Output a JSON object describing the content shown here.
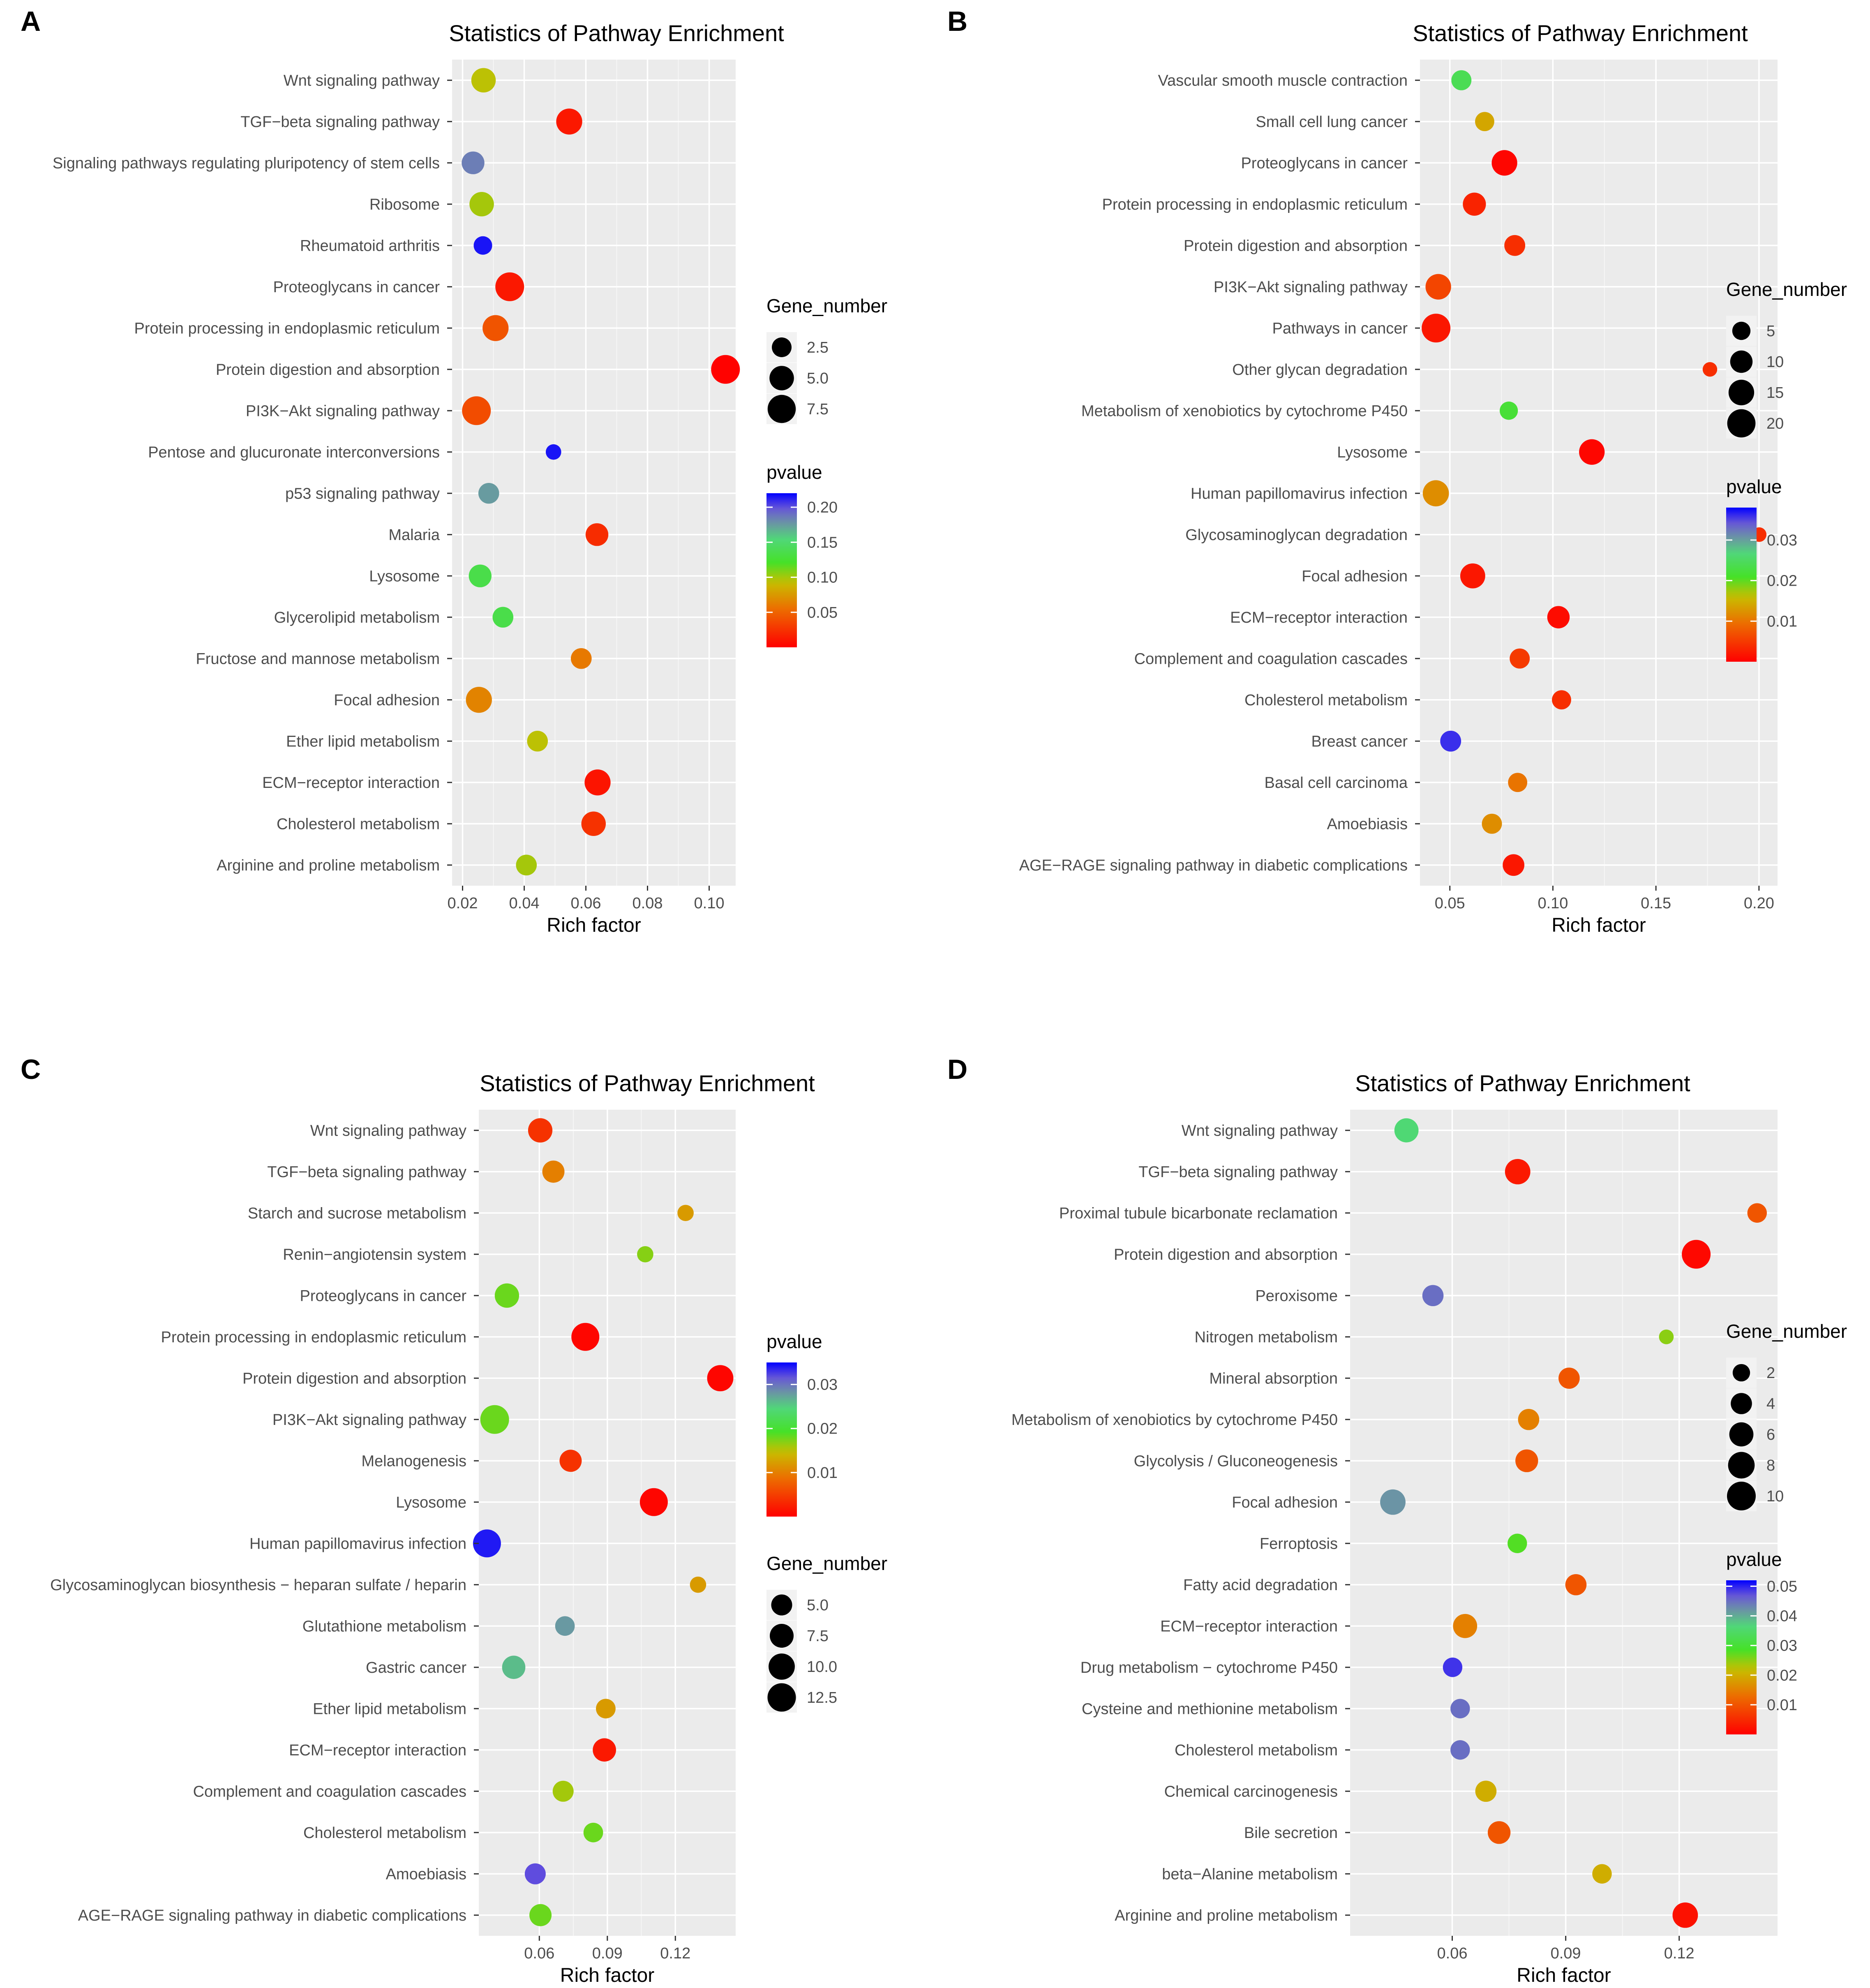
{
  "chart_data": [
    {
      "panel": "A",
      "type": "scatter",
      "title": "Statistics of Pathway Enrichment",
      "xlabel": "Rich factor",
      "ylabel": "",
      "xlim": [
        0.0166,
        0.1086
      ],
      "xticks": [
        0.02,
        0.04,
        0.06,
        0.08,
        0.1
      ],
      "xtick_labels": [
        "0.02",
        "0.04",
        "0.06",
        "0.08",
        "0.10"
      ],
      "pvalue_range": [
        0.0,
        0.22
      ],
      "size_legend_title": "Gene_number",
      "size_legend": [
        {
          "value": 2.5,
          "label": "2.5"
        },
        {
          "value": 5.0,
          "label": "5.0"
        },
        {
          "value": 7.5,
          "label": "7.5"
        }
      ],
      "color_legend_title": "pvalue",
      "color_ticks": [
        0.2,
        0.15,
        0.1,
        0.05
      ],
      "color_tick_labels": [
        "0.20",
        "0.15",
        "0.10",
        "0.05"
      ],
      "points": [
        {
          "pathway": "Wnt signaling pathway",
          "rich_factor": 0.0268,
          "pvalue": 0.095,
          "gene_number": 5
        },
        {
          "pathway": "TGF-beta signaling pathway",
          "rich_factor": 0.0546,
          "pvalue": 0.012,
          "gene_number": 6
        },
        {
          "pathway": "Signaling pathways regulating pluripotency of stem cells",
          "rich_factor": 0.0234,
          "pvalue": 0.185,
          "gene_number": 4
        },
        {
          "pathway": "Ribosome",
          "rich_factor": 0.0262,
          "pvalue": 0.1,
          "gene_number": 5
        },
        {
          "pathway": "Rheumatoid arthritis",
          "rich_factor": 0.0266,
          "pvalue": 0.215,
          "gene_number": 2
        },
        {
          "pathway": "Proteoglycans in cancer",
          "rich_factor": 0.0353,
          "pvalue": 0.012,
          "gene_number": 8
        },
        {
          "pathway": "Protein processing in endoplasmic reticulum",
          "rich_factor": 0.0307,
          "pvalue": 0.042,
          "gene_number": 6
        },
        {
          "pathway": "Protein digestion and absorption",
          "rich_factor": 0.1053,
          "pvalue": 0.001,
          "gene_number": 8
        },
        {
          "pathway": "PI3K-Akt signaling pathway",
          "rich_factor": 0.0245,
          "pvalue": 0.038,
          "gene_number": 8
        },
        {
          "pathway": "Pentose and glucuronate interconversions",
          "rich_factor": 0.0495,
          "pvalue": 0.215,
          "gene_number": 1
        },
        {
          "pathway": "p53 signaling pathway",
          "rich_factor": 0.0285,
          "pvalue": 0.175,
          "gene_number": 3
        },
        {
          "pathway": "Malaria",
          "rich_factor": 0.0636,
          "pvalue": 0.022,
          "gene_number": 4
        },
        {
          "pathway": "Lysosome",
          "rich_factor": 0.0257,
          "pvalue": 0.135,
          "gene_number": 4
        },
        {
          "pathway": "Glycerolipid metabolism",
          "rich_factor": 0.0331,
          "pvalue": 0.135,
          "gene_number": 3
        },
        {
          "pathway": "Fructose and mannose metabolism",
          "rich_factor": 0.0585,
          "pvalue": 0.06,
          "gene_number": 3
        },
        {
          "pathway": "Focal adhesion",
          "rich_factor": 0.0253,
          "pvalue": 0.065,
          "gene_number": 6
        },
        {
          "pathway": "Ether lipid metabolism",
          "rich_factor": 0.0443,
          "pvalue": 0.095,
          "gene_number": 3
        },
        {
          "pathway": "ECM-receptor interaction",
          "rich_factor": 0.0638,
          "pvalue": 0.01,
          "gene_number": 6
        },
        {
          "pathway": "Cholesterol metabolism",
          "rich_factor": 0.0625,
          "pvalue": 0.025,
          "gene_number": 5
        },
        {
          "pathway": "Arginine and proline metabolism",
          "rich_factor": 0.0407,
          "pvalue": 0.1,
          "gene_number": 3
        }
      ]
    },
    {
      "panel": "B",
      "type": "scatter",
      "title": "Statistics of Pathway Enrichment",
      "xlabel": "Rich factor",
      "ylabel": "",
      "xlim": [
        0.0355,
        0.209
      ],
      "xticks": [
        0.05,
        0.1,
        0.15,
        0.2
      ],
      "xtick_labels": [
        "0.05",
        "0.10",
        "0.15",
        "0.20"
      ],
      "pvalue_range": [
        0.0,
        0.038
      ],
      "size_legend_title": "Gene_number",
      "size_legend": [
        {
          "value": 5,
          "label": "5"
        },
        {
          "value": 10,
          "label": "10"
        },
        {
          "value": 15,
          "label": "15"
        },
        {
          "value": 20,
          "label": "20"
        }
      ],
      "color_legend_title": "pvalue",
      "color_ticks": [
        0.03,
        0.02,
        0.01
      ],
      "color_tick_labels": [
        "0.03",
        "0.02",
        "0.01"
      ],
      "points": [
        {
          "pathway": "Vascular smooth muscle contraction",
          "rich_factor": 0.0556,
          "pvalue": 0.024,
          "gene_number": 7
        },
        {
          "pathway": "Small cell lung cancer",
          "rich_factor": 0.0669,
          "pvalue": 0.014,
          "gene_number": 6
        },
        {
          "pathway": "Proteoglycans in cancer",
          "rich_factor": 0.0765,
          "pvalue": 0.0005,
          "gene_number": 15
        },
        {
          "pathway": "Protein processing in endoplasmic reticulum",
          "rich_factor": 0.0619,
          "pvalue": 0.003,
          "gene_number": 11
        },
        {
          "pathway": "Protein digestion and absorption",
          "rich_factor": 0.0815,
          "pvalue": 0.004,
          "gene_number": 8
        },
        {
          "pathway": "PI3K-Akt signaling pathway",
          "rich_factor": 0.0444,
          "pvalue": 0.006,
          "gene_number": 15
        },
        {
          "pathway": "Pathways in cancer",
          "rich_factor": 0.0433,
          "pvalue": 0.002,
          "gene_number": 21
        },
        {
          "pathway": "Other glycan degradation",
          "rich_factor": 0.1762,
          "pvalue": 0.004,
          "gene_number": 2
        },
        {
          "pathway": "Metabolism of xenobiotics by cytochrome P450",
          "rich_factor": 0.0786,
          "pvalue": 0.022,
          "gene_number": 5
        },
        {
          "pathway": "Lysosome",
          "rich_factor": 0.1189,
          "pvalue": 0.0005,
          "gene_number": 15
        },
        {
          "pathway": "Human papillomavirus infection",
          "rich_factor": 0.0432,
          "pvalue": 0.012,
          "gene_number": 16
        },
        {
          "pathway": "Glycosaminoglycan degradation",
          "rich_factor": 0.2001,
          "pvalue": 0.004,
          "gene_number": 2
        },
        {
          "pathway": "Focal adhesion",
          "rich_factor": 0.0611,
          "pvalue": 0.002,
          "gene_number": 14
        },
        {
          "pathway": "ECM-receptor interaction",
          "rich_factor": 0.1027,
          "pvalue": 0.001,
          "gene_number": 10
        },
        {
          "pathway": "Complement and coagulation cascades",
          "rich_factor": 0.0839,
          "pvalue": 0.005,
          "gene_number": 7
        },
        {
          "pathway": "Cholesterol metabolism",
          "rich_factor": 0.1042,
          "pvalue": 0.004,
          "gene_number": 6
        },
        {
          "pathway": "Breast cancer",
          "rich_factor": 0.0504,
          "pvalue": 0.036,
          "gene_number": 8
        },
        {
          "pathway": "Basal cell carcinoma",
          "rich_factor": 0.0829,
          "pvalue": 0.01,
          "gene_number": 6
        },
        {
          "pathway": "Amoebiasis",
          "rich_factor": 0.0704,
          "pvalue": 0.012,
          "gene_number": 7
        },
        {
          "pathway": "AGE-RAGE signaling pathway in diabetic complications",
          "rich_factor": 0.0809,
          "pvalue": 0.002,
          "gene_number": 9
        }
      ]
    },
    {
      "panel": "C",
      "type": "scatter",
      "title": "Statistics of Pathway Enrichment",
      "xlabel": "Rich factor",
      "ylabel": "",
      "xlim": [
        0.0333,
        0.1466
      ],
      "xticks": [
        0.06,
        0.09,
        0.12
      ],
      "xtick_labels": [
        "0.06",
        "0.09",
        "0.12"
      ],
      "pvalue_range": [
        0.0,
        0.035
      ],
      "size_legend_title": "Gene_number",
      "size_legend": [
        {
          "value": 5.0,
          "label": "5.0"
        },
        {
          "value": 7.5,
          "label": "7.5"
        },
        {
          "value": 10.0,
          "label": "10.0"
        },
        {
          "value": 12.5,
          "label": "12.5"
        }
      ],
      "color_legend_title": "pvalue",
      "color_ticks": [
        0.03,
        0.02,
        0.01
      ],
      "color_tick_labels": [
        "0.03",
        "0.02",
        "0.01"
      ],
      "points": [
        {
          "pathway": "Wnt signaling pathway",
          "rich_factor": 0.0604,
          "pvalue": 0.004,
          "gene_number": 8
        },
        {
          "pathway": "TGF-beta signaling pathway",
          "rich_factor": 0.0662,
          "pvalue": 0.01,
          "gene_number": 6
        },
        {
          "pathway": "Starch and sucrose metabolism",
          "rich_factor": 0.1245,
          "pvalue": 0.012,
          "gene_number": 2
        },
        {
          "pathway": "Renin-angiotensin system",
          "rich_factor": 0.1067,
          "pvalue": 0.017,
          "gene_number": 2
        },
        {
          "pathway": "Proteoglycans in cancer",
          "rich_factor": 0.0457,
          "pvalue": 0.018,
          "gene_number": 8
        },
        {
          "pathway": "Protein processing in endoplasmic reticulum",
          "rich_factor": 0.0803,
          "pvalue": 0.0005,
          "gene_number": 12
        },
        {
          "pathway": "Protein digestion and absorption",
          "rich_factor": 0.1398,
          "pvalue": 0.0005,
          "gene_number": 10
        },
        {
          "pathway": "PI3K-Akt signaling pathway",
          "rich_factor": 0.0403,
          "pvalue": 0.018,
          "gene_number": 13
        },
        {
          "pathway": "Melanogenesis",
          "rich_factor": 0.0738,
          "pvalue": 0.004,
          "gene_number": 6
        },
        {
          "pathway": "Lysosome",
          "rich_factor": 0.1105,
          "pvalue": 0.0005,
          "gene_number": 12
        },
        {
          "pathway": "Human papillomavirus infection",
          "rich_factor": 0.0369,
          "pvalue": 0.034,
          "gene_number": 12
        },
        {
          "pathway": "Glycosaminoglycan biosynthesis - heparan sulfate / heparin",
          "rich_factor": 0.13,
          "pvalue": 0.012,
          "gene_number": 2
        },
        {
          "pathway": "Glutathione metabolism",
          "rich_factor": 0.0713,
          "pvalue": 0.028,
          "gene_number": 4
        },
        {
          "pathway": "Gastric cancer",
          "rich_factor": 0.0487,
          "pvalue": 0.026,
          "gene_number": 7
        },
        {
          "pathway": "Ether lipid metabolism",
          "rich_factor": 0.0893,
          "pvalue": 0.012,
          "gene_number": 4
        },
        {
          "pathway": "ECM-receptor interaction",
          "rich_factor": 0.0887,
          "pvalue": 0.002,
          "gene_number": 7
        },
        {
          "pathway": "Complement and coagulation cascades",
          "rich_factor": 0.0705,
          "pvalue": 0.016,
          "gene_number": 5
        },
        {
          "pathway": "Cholesterol metabolism",
          "rich_factor": 0.0838,
          "pvalue": 0.018,
          "gene_number": 4
        },
        {
          "pathway": "Amoebiasis",
          "rich_factor": 0.0582,
          "pvalue": 0.032,
          "gene_number": 5
        },
        {
          "pathway": "AGE-RAGE signaling pathway in diabetic complications",
          "rich_factor": 0.0605,
          "pvalue": 0.018,
          "gene_number": 6
        }
      ]
    },
    {
      "panel": "D",
      "type": "scatter",
      "title": "Statistics of Pathway Enrichment",
      "xlabel": "Rich factor",
      "ylabel": "",
      "xlim": [
        0.033,
        0.146
      ],
      "xticks": [
        0.06,
        0.09,
        0.12
      ],
      "xtick_labels": [
        "0.06",
        "0.09",
        "0.12"
      ],
      "pvalue_range": [
        0.0,
        0.052
      ],
      "size_legend_title": "Gene_number",
      "size_legend": [
        {
          "value": 2,
          "label": "2"
        },
        {
          "value": 4,
          "label": "4"
        },
        {
          "value": 6,
          "label": "6"
        },
        {
          "value": 8,
          "label": "8"
        },
        {
          "value": 10,
          "label": "10"
        }
      ],
      "color_legend_title": "pvalue",
      "color_ticks": [
        0.05,
        0.04,
        0.03,
        0.02,
        0.01
      ],
      "color_tick_labels": [
        "0.05",
        "0.04",
        "0.03",
        "0.02",
        "0.01"
      ],
      "points": [
        {
          "pathway": "Wnt signaling pathway",
          "rich_factor": 0.0479,
          "pvalue": 0.036,
          "gene_number": 6
        },
        {
          "pathway": "TGF-beta signaling pathway",
          "rich_factor": 0.0773,
          "pvalue": 0.003,
          "gene_number": 7
        },
        {
          "pathway": "Proximal tubule bicarbonate reclamation",
          "rich_factor": 0.1406,
          "pvalue": 0.01,
          "gene_number": 3
        },
        {
          "pathway": "Protein digestion and absorption",
          "rich_factor": 0.1245,
          "pvalue": 0.001,
          "gene_number": 10
        },
        {
          "pathway": "Peroxisome",
          "rich_factor": 0.0549,
          "pvalue": 0.045,
          "gene_number": 4
        },
        {
          "pathway": "Nitrogen metabolism",
          "rich_factor": 0.1166,
          "pvalue": 0.025,
          "gene_number": 1
        },
        {
          "pathway": "Mineral absorption",
          "rich_factor": 0.0909,
          "pvalue": 0.01,
          "gene_number": 4
        },
        {
          "pathway": "Metabolism of xenobiotics by cytochrome P450",
          "rich_factor": 0.0802,
          "pvalue": 0.015,
          "gene_number": 4
        },
        {
          "pathway": "Glycolysis / Gluconeogenesis",
          "rich_factor": 0.0797,
          "pvalue": 0.01,
          "gene_number": 5
        },
        {
          "pathway": "Focal adhesion",
          "rich_factor": 0.0443,
          "pvalue": 0.042,
          "gene_number": 7
        },
        {
          "pathway": "Ferroptosis",
          "rich_factor": 0.0772,
          "pvalue": 0.028,
          "gene_number": 3
        },
        {
          "pathway": "Fatty acid degradation",
          "rich_factor": 0.0927,
          "pvalue": 0.01,
          "gene_number": 4
        },
        {
          "pathway": "ECM-receptor interaction",
          "rich_factor": 0.0634,
          "pvalue": 0.015,
          "gene_number": 6
        },
        {
          "pathway": "Drug metabolism - cytochrome P450",
          "rich_factor": 0.0601,
          "pvalue": 0.049,
          "gene_number": 3
        },
        {
          "pathway": "Cysteine and methionine metabolism",
          "rich_factor": 0.0621,
          "pvalue": 0.045,
          "gene_number": 3
        },
        {
          "pathway": "Cholesterol metabolism",
          "rich_factor": 0.0621,
          "pvalue": 0.045,
          "gene_number": 3
        },
        {
          "pathway": "Chemical carcinogenesis",
          "rich_factor": 0.0689,
          "pvalue": 0.02,
          "gene_number": 4
        },
        {
          "pathway": "Bile secretion",
          "rich_factor": 0.0724,
          "pvalue": 0.01,
          "gene_number": 5
        },
        {
          "pathway": "beta-Alanine metabolism",
          "rich_factor": 0.0996,
          "pvalue": 0.02,
          "gene_number": 3
        },
        {
          "pathway": "Arginine and proline metabolism",
          "rich_factor": 0.1216,
          "pvalue": 0.002,
          "gene_number": 7
        }
      ]
    }
  ]
}
